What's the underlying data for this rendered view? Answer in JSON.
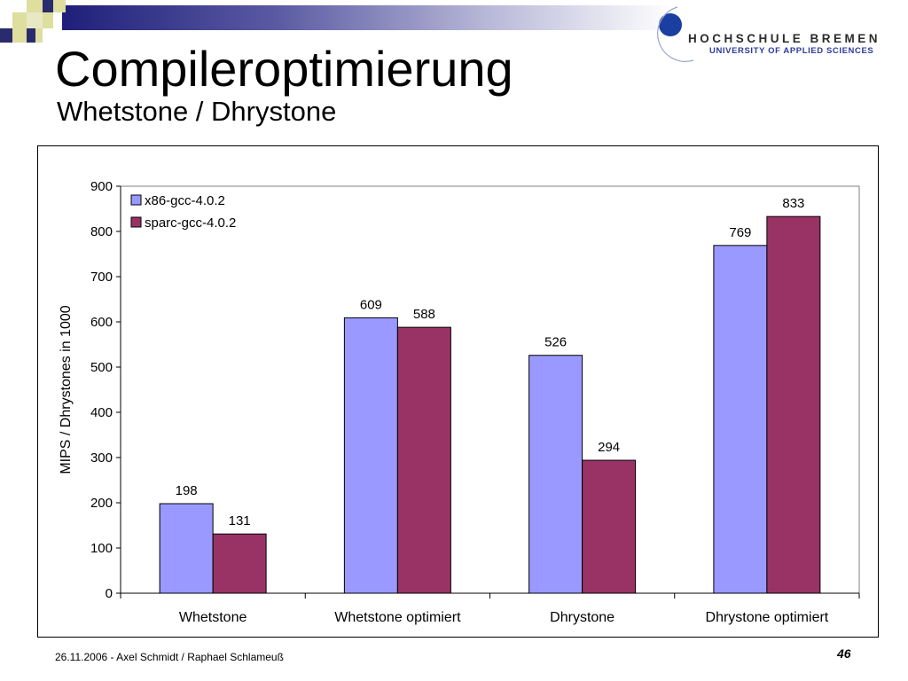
{
  "slide": {
    "title": "Compileroptimierung",
    "subtitle": "Whetstone / Dhrystone",
    "footer": "26.11.2006 - Axel Schmidt / Raphael Schlameuß",
    "page_number": "46"
  },
  "logo": {
    "line1": "HOCHSCHULE BREMEN",
    "line2": "UNIVERSITY OF APPLIED SCIENCES"
  },
  "colors": {
    "x86": "#9999ff",
    "sparc": "#993366",
    "title_bar_dark": "#1f1f7a",
    "deco_yellow": "#dede9e",
    "deco_navy": "#2a2a6e",
    "logo_blue": "#1b3fa0"
  },
  "chart_data": {
    "type": "bar",
    "categories": [
      "Whetstone",
      "Whetstone optimiert",
      "Dhrystone",
      "Dhrystone optimiert"
    ],
    "series": [
      {
        "name": "x86-gcc-4.0.2",
        "values": [
          198,
          609,
          526,
          769
        ],
        "color": "#9999ff"
      },
      {
        "name": "sparc-gcc-4.0.2",
        "values": [
          131,
          588,
          294,
          833
        ],
        "color": "#993366"
      }
    ],
    "title": "",
    "xlabel": "",
    "ylabel": "MIPS / Dhrystones in 1000",
    "ylim": [
      0,
      900
    ],
    "yticks": [
      0,
      100,
      200,
      300,
      400,
      500,
      600,
      700,
      800,
      900
    ],
    "data_labels": true,
    "legend_position": "top-left",
    "grid": false
  }
}
